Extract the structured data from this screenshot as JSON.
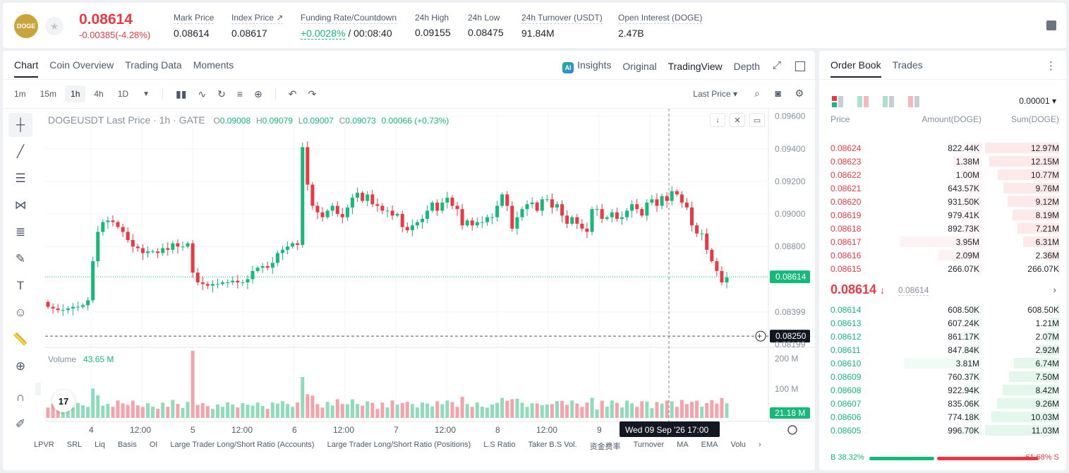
{
  "header": {
    "coin_logo": "DOGE",
    "last_price": "0.08614",
    "change": "-0.00385(-4.28%)",
    "stats": [
      {
        "label": "Mark Price",
        "value": "0.08614"
      },
      {
        "label": "Index Price ↗",
        "value": "0.08617"
      },
      {
        "label": "Funding Rate/Countdown",
        "value_green": "+0.0028%",
        "value_rest": " / 00:08:40"
      },
      {
        "label": "24h High",
        "value": "0.09155"
      },
      {
        "label": "24h Low",
        "value": "0.08475"
      },
      {
        "label": "24h Turnover (USDT)",
        "value": "91.84M"
      },
      {
        "label": "Open Interest (DOGE)",
        "value": "2.47B"
      }
    ]
  },
  "chart_panel": {
    "tabs": [
      "Chart",
      "Coin Overview",
      "Trading Data",
      "Moments"
    ],
    "view_tabs": {
      "insights": "Insights",
      "insights_badge": "AI",
      "original": "Original",
      "tradingview": "TradingView",
      "depth": "Depth"
    },
    "timeframes": [
      "1m",
      "15m",
      "1h",
      "4h",
      "1D"
    ],
    "price_type": "Last Price ▾",
    "legend": {
      "symbol": "DOGEUSDT Last Price · 1h · GATE",
      "o_label": "O",
      "o": "0.09008",
      "h_label": "H",
      "h": "0.09079",
      "l_label": "L",
      "l": "0.09007",
      "c_label": "C",
      "c": "0.09073",
      "chg": "0.00066 (+0.73%)"
    },
    "volume_label": "Volume",
    "volume_value": "43.65 M",
    "bottom_indicators": [
      "LPVR",
      "SRL",
      "Liq",
      "Basis",
      "OI",
      "Large Trader Long/Short Ratio (Accounts)",
      "Large Trader Long/Short Ratio (Positions)",
      "L.S Ratio",
      "Taker B.S Vol.",
      "资金费率",
      "Turnover",
      "MA",
      "EMA",
      "Volu"
    ],
    "tv_logo": "17"
  },
  "chart_data": {
    "type": "candlestick",
    "symbol": "DOGEUSDT",
    "interval": "1h",
    "y_axis_ticks": [
      "0.09600",
      "0.09400",
      "0.09200",
      "0.09000",
      "0.08800",
      "0.08399",
      "0.08199"
    ],
    "y_range": [
      0.0819,
      0.0962
    ],
    "current_price_label": "0.08614",
    "crosshair_price_label": "0.08250",
    "crosshair_time_label": "Wed 09 Sep '26   17:00",
    "x_axis_ticks": [
      "4",
      "12:00",
      "5",
      "12:00",
      "6",
      "12:00",
      "7",
      "12:00",
      "8",
      "12:00",
      "9",
      "12:00"
    ],
    "volume_axis_ticks": [
      "200 M",
      "100 M"
    ],
    "current_volume_label": "21.18 M",
    "closes": [
      0.0843,
      0.0842,
      0.0841,
      0.0841,
      0.0842,
      0.0843,
      0.0843,
      0.0844,
      0.0847,
      0.0871,
      0.0889,
      0.0895,
      0.0896,
      0.0895,
      0.0892,
      0.0889,
      0.0884,
      0.088,
      0.0879,
      0.0876,
      0.0877,
      0.0877,
      0.0876,
      0.0879,
      0.0878,
      0.0882,
      0.088,
      0.088,
      0.0882,
      0.0864,
      0.0858,
      0.0857,
      0.0856,
      0.0857,
      0.0857,
      0.0858,
      0.0858,
      0.0859,
      0.0858,
      0.0858,
      0.086,
      0.0865,
      0.0867,
      0.0868,
      0.0867,
      0.087,
      0.0876,
      0.0878,
      0.088,
      0.0882,
      0.0881,
      0.0941,
      0.0918,
      0.0905,
      0.0901,
      0.0898,
      0.0902,
      0.0905,
      0.09,
      0.0898,
      0.0904,
      0.091,
      0.0913,
      0.0908,
      0.0912,
      0.0906,
      0.0905,
      0.0902,
      0.0902,
      0.0899,
      0.09,
      0.0892,
      0.089,
      0.0893,
      0.0895,
      0.0897,
      0.0902,
      0.0907,
      0.0902,
      0.0907,
      0.091,
      0.0905,
      0.0903,
      0.0893,
      0.0896,
      0.0893,
      0.0895,
      0.0895,
      0.0898,
      0.0898,
      0.0905,
      0.0912,
      0.0905,
      0.0891,
      0.0898,
      0.0903,
      0.0906,
      0.0907,
      0.0902,
      0.0909,
      0.0909,
      0.0904,
      0.0906,
      0.0899,
      0.0894,
      0.0898,
      0.0894,
      0.0891,
      0.0889,
      0.0903,
      0.0903,
      0.0897,
      0.0898,
      0.0901,
      0.0897,
      0.0898,
      0.0902,
      0.0906,
      0.0903,
      0.0899,
      0.0907,
      0.0909,
      0.0905,
      0.0911,
      0.0908,
      0.0914,
      0.0912,
      0.0907,
      0.0904,
      0.0893,
      0.0888,
      0.0888,
      0.0878,
      0.0871,
      0.0865,
      0.0858,
      0.0861
    ]
  },
  "order_book": {
    "tabs": [
      "Order Book",
      "Trades"
    ],
    "precision": "0.00001 ▾",
    "headers": {
      "price": "Price",
      "amount": "Amount(DOGE)",
      "sum": "Sum(DOGE)"
    },
    "asks": [
      {
        "price": "0.08624",
        "amount": "822.44K",
        "sum": "12.97M",
        "sum_frac": 1.0,
        "amt_frac": 0.21
      },
      {
        "price": "0.08623",
        "amount": "1.38M",
        "sum": "12.15M",
        "sum_frac": 0.94,
        "amt_frac": 0.35
      },
      {
        "price": "0.08622",
        "amount": "1.00M",
        "sum": "10.77M",
        "sum_frac": 0.83,
        "amt_frac": 0.25
      },
      {
        "price": "0.08621",
        "amount": "643.57K",
        "sum": "9.76M",
        "sum_frac": 0.75,
        "amt_frac": 0.16
      },
      {
        "price": "0.08620",
        "amount": "931.50K",
        "sum": "9.12M",
        "sum_frac": 0.7,
        "amt_frac": 0.24
      },
      {
        "price": "0.08619",
        "amount": "979.41K",
        "sum": "8.19M",
        "sum_frac": 0.63,
        "amt_frac": 0.25
      },
      {
        "price": "0.08618",
        "amount": "892.73K",
        "sum": "7.21M",
        "sum_frac": 0.56,
        "amt_frac": 0.23
      },
      {
        "price": "0.08617",
        "amount": "3.95M",
        "sum": "6.31M",
        "sum_frac": 0.49,
        "amt_frac": 1.0
      },
      {
        "price": "0.08616",
        "amount": "2.09M",
        "sum": "2.36M",
        "sum_frac": 0.18,
        "amt_frac": 0.53
      },
      {
        "price": "0.08615",
        "amount": "266.07K",
        "sum": "266.07K",
        "sum_frac": 0.02,
        "amt_frac": 0.07
      }
    ],
    "mid_price": "0.08614",
    "mid_arrow": "↓",
    "mark_price": "0.08614",
    "bids": [
      {
        "price": "0.08614",
        "amount": "608.50K",
        "sum": "608.50K",
        "sum_frac": 0.05,
        "amt_frac": 0.15
      },
      {
        "price": "0.08613",
        "amount": "607.24K",
        "sum": "1.21M",
        "sum_frac": 0.11,
        "amt_frac": 0.15
      },
      {
        "price": "0.08612",
        "amount": "861.17K",
        "sum": "2.07M",
        "sum_frac": 0.19,
        "amt_frac": 0.22
      },
      {
        "price": "0.08611",
        "amount": "847.84K",
        "sum": "2.92M",
        "sum_frac": 0.27,
        "amt_frac": 0.21
      },
      {
        "price": "0.08610",
        "amount": "3.81M",
        "sum": "6.74M",
        "sum_frac": 0.61,
        "amt_frac": 0.96
      },
      {
        "price": "0.08609",
        "amount": "760.37K",
        "sum": "7.50M",
        "sum_frac": 0.68,
        "amt_frac": 0.19
      },
      {
        "price": "0.08608",
        "amount": "922.94K",
        "sum": "8.42M",
        "sum_frac": 0.76,
        "amt_frac": 0.23
      },
      {
        "price": "0.08607",
        "amount": "835.06K",
        "sum": "9.26M",
        "sum_frac": 0.84,
        "amt_frac": 0.21
      },
      {
        "price": "0.08606",
        "amount": "774.18K",
        "sum": "10.03M",
        "sum_frac": 0.91,
        "amt_frac": 0.2
      },
      {
        "price": "0.08605",
        "amount": "996.70K",
        "sum": "11.03M",
        "sum_frac": 1.0,
        "amt_frac": 0.25
      }
    ],
    "buy_ratio": "B 38.32%",
    "buy_frac": 0.3832,
    "sell_ratio": "61.68% S"
  },
  "colors": {
    "up": "#16b979",
    "down": "#ea3943",
    "up_vol": "#8fdcbc",
    "down_vol": "#f5a3ab"
  }
}
